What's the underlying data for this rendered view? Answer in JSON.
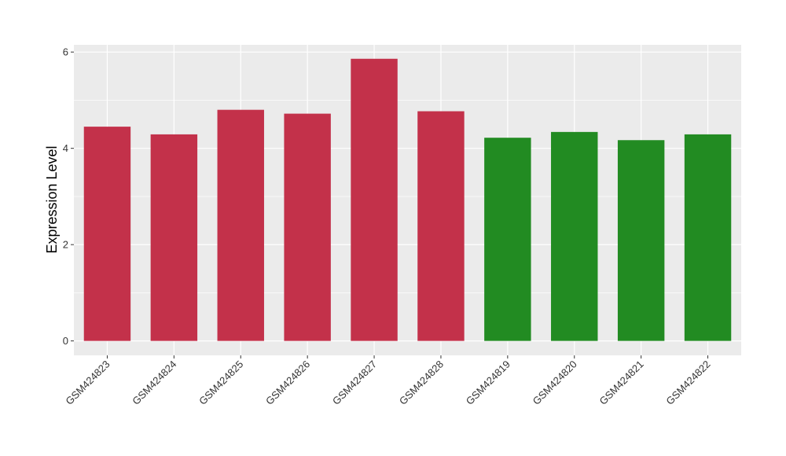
{
  "chart_data": {
    "type": "bar",
    "ylabel": "Expression Level",
    "xlabel": "",
    "ylim": [
      -0.3,
      6.15
    ],
    "yticks": [
      0,
      2,
      4,
      6
    ],
    "grid": true,
    "categories": [
      "GSM424823",
      "GSM424824",
      "GSM424825",
      "GSM424826",
      "GSM424827",
      "GSM424828",
      "GSM424819",
      "GSM424820",
      "GSM424821",
      "GSM424822"
    ],
    "values": [
      4.45,
      4.29,
      4.8,
      4.72,
      5.86,
      4.77,
      4.22,
      4.34,
      4.17,
      4.29
    ],
    "bar_colors": [
      "#c3314a",
      "#c3314a",
      "#c3314a",
      "#c3314a",
      "#c3314a",
      "#c3314a",
      "#228b22",
      "#228b22",
      "#228b22",
      "#228b22"
    ],
    "panel_background": "#ebebeb",
    "grid_color": "#ffffff"
  }
}
